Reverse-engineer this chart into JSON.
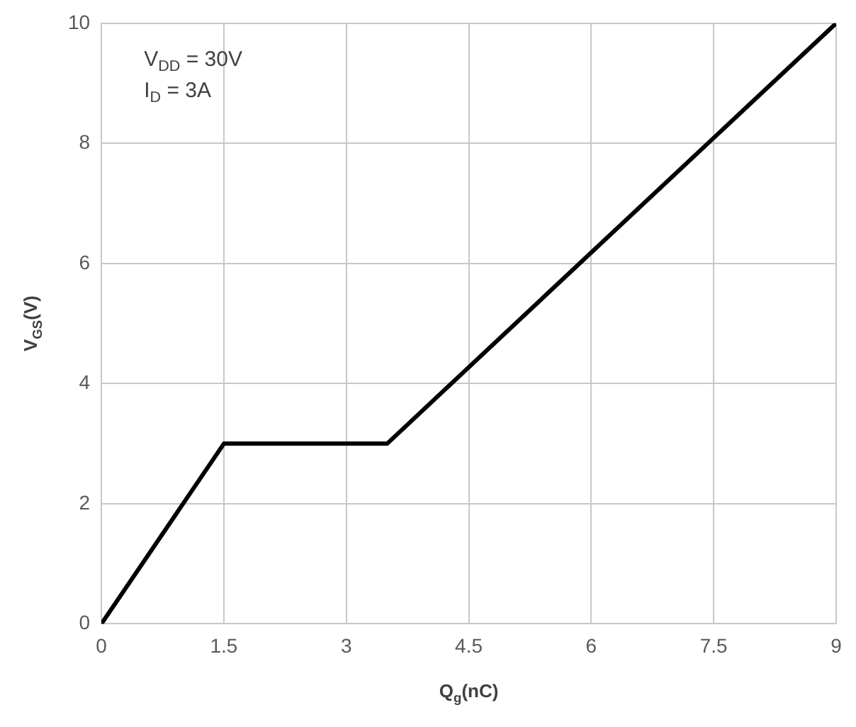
{
  "chart_data": {
    "type": "line",
    "xlabel": "Q$_{g}$(nC)",
    "ylabel": "V$_{GS}$(V)",
    "annotations": [
      "V$_{DD}$ = 30V",
      "I$_{D}$ = 3A"
    ],
    "x": [
      0,
      1.5,
      3.5,
      9
    ],
    "series": [
      {
        "color": "#000000",
        "values": [
          0,
          3,
          3,
          10
        ]
      }
    ],
    "xlim": [
      0,
      9
    ],
    "xticks": [
      0,
      1.5,
      3,
      4.5,
      6,
      7.5,
      9
    ],
    "ylim": [
      0,
      10
    ],
    "yticks": [
      0,
      2,
      4,
      6,
      8,
      10
    ],
    "grid": true,
    "legend": false,
    "marker": "none",
    "line_style": "solid"
  }
}
